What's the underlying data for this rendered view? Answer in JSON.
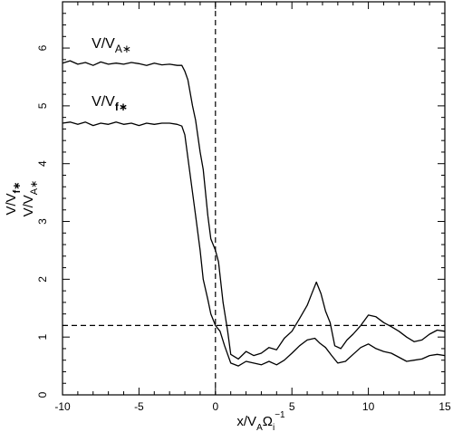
{
  "chart_data": {
    "type": "line",
    "xlim": [
      -10,
      15
    ],
    "ylim": [
      0,
      6.8
    ],
    "x_ticks": [
      "-10",
      "-5",
      "0",
      "5",
      "10",
      "15"
    ],
    "x_tick_values": [
      -10,
      -5,
      0,
      5,
      10,
      15
    ],
    "y_ticks": [
      "0",
      "1",
      "2",
      "3",
      "4",
      "5",
      "6"
    ],
    "y_tick_values": [
      0,
      1,
      2,
      3,
      4,
      5,
      6
    ],
    "xlabel": {
      "main": "x/V",
      "sub1": "A",
      "omega": "Ω",
      "sub2": "i",
      "sup": "−1"
    },
    "ylabel": {
      "line1_main": "V/V",
      "line1_sub": "f∗",
      "line2_main": "V/V",
      "line2_sub": "A∗"
    },
    "reference_lines": {
      "vertical_x": 0,
      "horizontal_y": 1.2,
      "style": "dashed"
    },
    "series": [
      {
        "name": "V/VA*",
        "label_main": "V/V",
        "label_sub": "A∗",
        "label_anchor": [
          -8.1,
          6.0
        ],
        "x": [
          -10,
          -9.5,
          -9,
          -8.5,
          -8,
          -7.5,
          -7,
          -6.5,
          -6,
          -5.5,
          -5,
          -4.5,
          -4,
          -3.5,
          -3,
          -2.5,
          -2.2,
          -2,
          -1.8,
          -1.5,
          -1.3,
          -1,
          -0.8,
          -0.5,
          -0.3,
          0,
          0.2,
          0.5,
          0.8,
          1,
          1.5,
          2,
          2.5,
          3,
          3.5,
          4,
          4.5,
          5,
          5.5,
          6,
          6.3,
          6.6,
          6.9,
          7.2,
          7.5,
          7.8,
          8.2,
          8.6,
          9,
          9.5,
          10,
          10.5,
          11,
          11.5,
          12,
          12.5,
          13,
          13.5,
          14,
          14.5,
          15
        ],
        "y": [
          5.74,
          5.78,
          5.72,
          5.75,
          5.7,
          5.76,
          5.72,
          5.74,
          5.72,
          5.75,
          5.73,
          5.7,
          5.74,
          5.71,
          5.72,
          5.7,
          5.7,
          5.6,
          5.45,
          5.0,
          4.75,
          4.2,
          3.9,
          3.1,
          2.7,
          2.5,
          2.3,
          1.6,
          1.1,
          0.7,
          0.62,
          0.75,
          0.68,
          0.72,
          0.82,
          0.78,
          0.98,
          1.1,
          1.32,
          1.55,
          1.75,
          1.95,
          1.75,
          1.45,
          1.25,
          0.85,
          0.8,
          0.95,
          1.05,
          1.2,
          1.38,
          1.35,
          1.25,
          1.18,
          1.1,
          1.0,
          0.92,
          0.95,
          1.05,
          1.12,
          1.1
        ]
      },
      {
        "name": "V/Vf*",
        "label_main": "V/V",
        "label_sub": "f∗",
        "label_anchor": [
          -8.1,
          5.0
        ],
        "x": [
          -10,
          -9.5,
          -9,
          -8.5,
          -8,
          -7.5,
          -7,
          -6.5,
          -6,
          -5.5,
          -5,
          -4.5,
          -4,
          -3.5,
          -3,
          -2.5,
          -2.2,
          -2,
          -1.8,
          -1.5,
          -1.3,
          -1,
          -0.8,
          -0.5,
          -0.3,
          0,
          0.3,
          0.6,
          1,
          1.5,
          2,
          2.5,
          3,
          3.5,
          4,
          4.5,
          5,
          5.5,
          6,
          6.5,
          6.8,
          7.2,
          7.6,
          8,
          8.5,
          9,
          9.5,
          10,
          10.5,
          11,
          11.5,
          12,
          12.5,
          13,
          13.5,
          14,
          14.5,
          15
        ],
        "y": [
          4.7,
          4.72,
          4.68,
          4.72,
          4.66,
          4.7,
          4.68,
          4.72,
          4.68,
          4.7,
          4.66,
          4.7,
          4.68,
          4.7,
          4.7,
          4.68,
          4.65,
          4.5,
          4.1,
          3.5,
          3.1,
          2.5,
          2.0,
          1.65,
          1.4,
          1.2,
          1.1,
          0.85,
          0.55,
          0.5,
          0.58,
          0.55,
          0.52,
          0.58,
          0.52,
          0.6,
          0.72,
          0.85,
          0.95,
          0.98,
          0.9,
          0.82,
          0.68,
          0.55,
          0.58,
          0.7,
          0.82,
          0.88,
          0.8,
          0.75,
          0.72,
          0.65,
          0.58,
          0.6,
          0.62,
          0.68,
          0.7,
          0.68
        ]
      }
    ]
  }
}
